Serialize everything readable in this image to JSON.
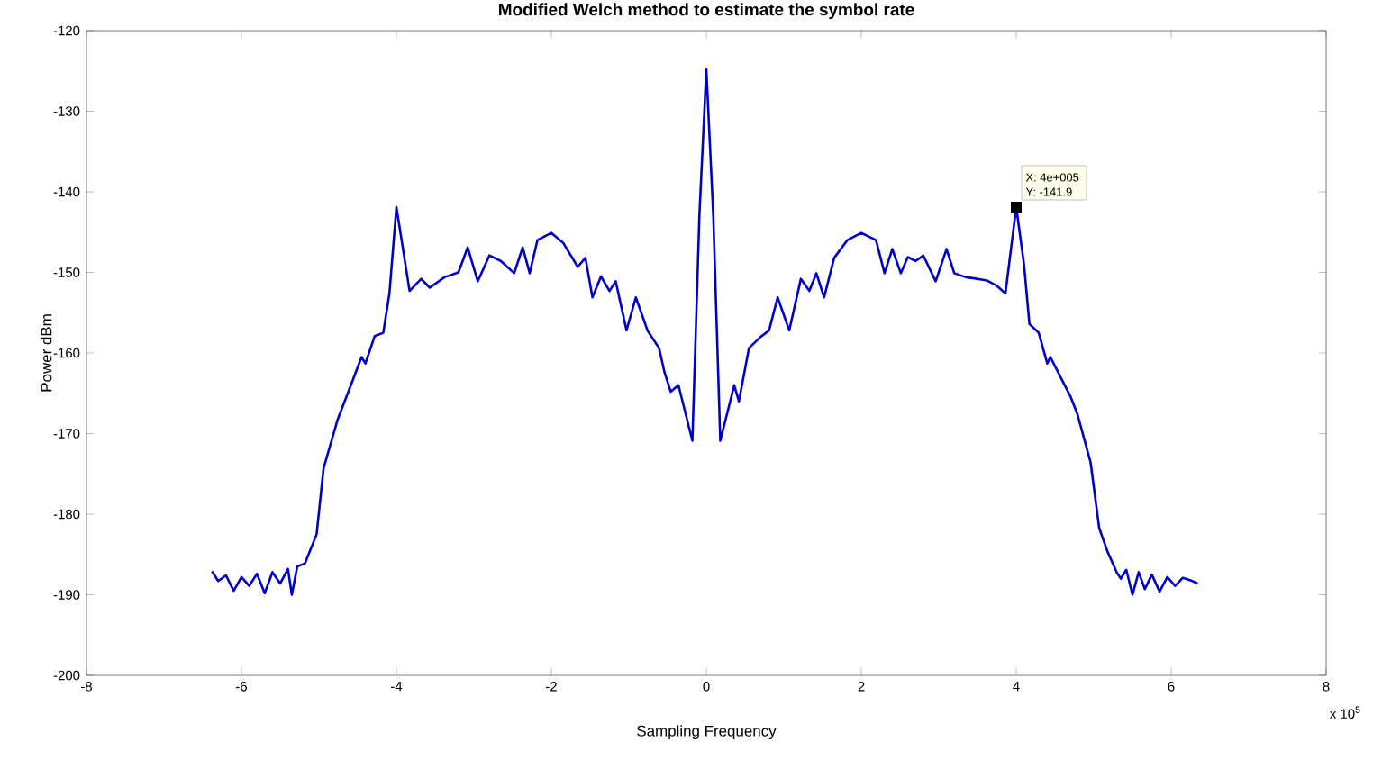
{
  "chart_data": {
    "type": "line",
    "title": "Modified Welch method to estimate the symbol rate",
    "xlabel": "Sampling Frequency",
    "ylabel": "Power dBm",
    "annotations": [
      "x 10$^{5}$",
      {
        "text": "X: 4e+005",
        "x": 4,
        "y": -141.9
      },
      {
        "text": "Y: -141.9",
        "x": 4,
        "y": -141.9
      }
    ],
    "color": "#0000cc",
    "marker": "none",
    "line_style": "solid",
    "xlim": [
      -8,
      8
    ],
    "xticks": [
      -8,
      -6,
      -4,
      -2,
      0,
      2,
      4,
      6,
      8
    ],
    "ylim": [
      -200,
      -120
    ],
    "yticks": [
      -200,
      -190,
      -180,
      -170,
      -160,
      -150,
      -140,
      -130,
      -120
    ],
    "x": [
      -6.38,
      -6.3,
      -6.2,
      -6.1,
      -6.0,
      -5.9,
      -5.8,
      -5.7,
      -5.6,
      -5.5,
      -5.4,
      -5.35,
      -5.28,
      -5.18,
      -5.03,
      -4.94,
      -4.76,
      -4.58,
      -4.45,
      -4.4,
      -4.28,
      -4.17,
      -4.09,
      -4.0,
      -3.83,
      -3.68,
      -3.57,
      -3.38,
      -3.2,
      -3.08,
      -2.95,
      -2.8,
      -2.65,
      -2.48,
      -2.37,
      -2.28,
      -2.18,
      -2.0,
      -1.85,
      -1.66,
      -1.56,
      -1.47,
      -1.36,
      -1.25,
      -1.17,
      -1.03,
      -0.91,
      -0.76,
      -0.61,
      -0.54,
      -0.46,
      -0.36,
      -0.18,
      -0.09,
      0.0,
      0.09,
      0.18,
      0.36,
      0.42,
      0.55,
      0.7,
      0.81,
      0.92,
      1.07,
      1.22,
      1.33,
      1.42,
      1.52,
      1.65,
      1.82,
      2.0,
      2.19,
      2.3,
      2.4,
      2.51,
      2.6,
      2.7,
      2.8,
      2.96,
      3.1,
      3.2,
      3.35,
      3.5,
      3.62,
      3.74,
      3.86,
      4.0,
      4.1,
      4.17,
      4.29,
      4.4,
      4.44,
      4.7,
      4.79,
      4.96,
      5.07,
      5.18,
      5.3,
      5.35,
      5.42,
      5.5,
      5.58,
      5.66,
      5.75,
      5.85,
      5.95,
      6.05,
      6.15,
      6.25,
      6.34
    ],
    "values": [
      -187.1,
      -188.3,
      -187.6,
      -189.5,
      -187.8,
      -188.9,
      -187.4,
      -189.8,
      -187.2,
      -188.6,
      -186.8,
      -190.0,
      -186.5,
      -186.1,
      -182.5,
      -174.3,
      -168.3,
      -163.8,
      -160.5,
      -161.3,
      -157.9,
      -157.5,
      -152.6,
      -141.9,
      -152.3,
      -150.8,
      -151.9,
      -150.6,
      -150.0,
      -146.9,
      -151.1,
      -147.9,
      -148.6,
      -150.1,
      -146.9,
      -150.1,
      -146.0,
      -145.1,
      -146.3,
      -149.3,
      -148.2,
      -153.1,
      -150.5,
      -152.3,
      -151.1,
      -157.2,
      -153.1,
      -157.2,
      -159.4,
      -162.4,
      -164.8,
      -164.0,
      -170.9,
      -143.0,
      -124.8,
      -143.0,
      -170.9,
      -164.0,
      -166.0,
      -159.4,
      -158.0,
      -157.2,
      -153.1,
      -157.2,
      -150.8,
      -152.3,
      -150.1,
      -153.1,
      -148.2,
      -146.0,
      -145.1,
      -146.0,
      -150.1,
      -147.1,
      -150.1,
      -148.1,
      -148.6,
      -147.9,
      -151.1,
      -147.1,
      -150.1,
      -150.6,
      -150.8,
      -151.0,
      -151.6,
      -152.6,
      -141.9,
      -149.0,
      -156.4,
      -157.5,
      -161.3,
      -160.5,
      -165.4,
      -167.6,
      -173.6,
      -181.7,
      -184.7,
      -187.3,
      -188.0,
      -186.9,
      -190.0,
      -187.2,
      -189.3,
      -187.5,
      -189.6,
      -187.8,
      -188.9,
      -187.9,
      -188.2,
      -188.6
    ]
  }
}
